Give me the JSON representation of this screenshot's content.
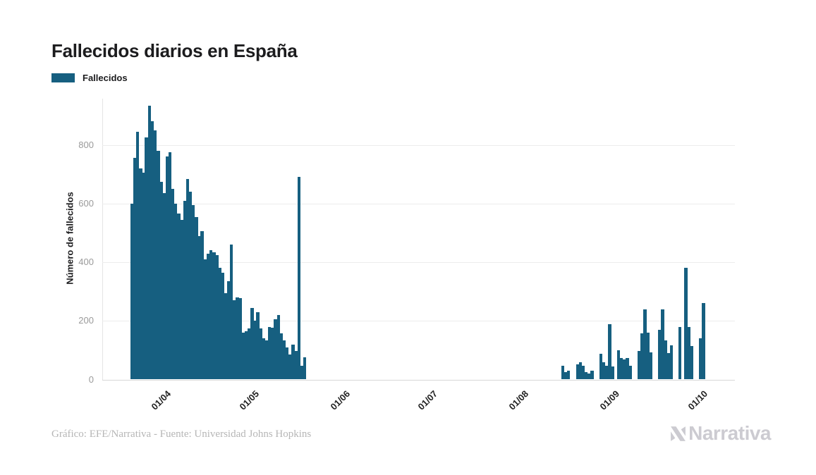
{
  "title": "Fallecidos diarios en España",
  "legend": {
    "label": "Fallecidos",
    "color": "#165f80"
  },
  "footer": {
    "credit": "Gráfico: EFE/Narrativa - Fuente: Universidad Johns Hopkins"
  },
  "logo": {
    "text": "Narrativa"
  },
  "chart_data": {
    "type": "bar",
    "title": "Fallecidos diarios en España",
    "series_name": "Fallecidos",
    "xlabel": "",
    "ylabel": "Número de fallecidos",
    "ylim": [
      0,
      960
    ],
    "yticks": [
      0,
      200,
      400,
      600,
      800
    ],
    "grid": true,
    "legend_position": "top-left",
    "bar_color": "#165f80",
    "xticks": [
      {
        "label": "01/04",
        "index": 6
      },
      {
        "label": "01/05",
        "index": 36
      },
      {
        "label": "01/06",
        "index": 67
      },
      {
        "label": "01/07",
        "index": 97
      },
      {
        "label": "01/08",
        "index": 128
      },
      {
        "label": "01/09",
        "index": 159
      },
      {
        "label": "01/10",
        "index": 189
      }
    ],
    "values": [
      600,
      755,
      845,
      720,
      705,
      825,
      935,
      880,
      850,
      780,
      675,
      635,
      760,
      775,
      650,
      600,
      565,
      545,
      610,
      685,
      640,
      595,
      555,
      490,
      505,
      410,
      430,
      440,
      435,
      425,
      380,
      365,
      295,
      335,
      460,
      270,
      280,
      278,
      160,
      165,
      175,
      245,
      200,
      230,
      175,
      140,
      133,
      180,
      177,
      205,
      220,
      157,
      133,
      110,
      85,
      120,
      97,
      690,
      46,
      76,
      0,
      0,
      0,
      0,
      0,
      0,
      0,
      0,
      0,
      0,
      0,
      0,
      0,
      0,
      0,
      0,
      0,
      0,
      0,
      0,
      0,
      0,
      0,
      0,
      0,
      0,
      0,
      0,
      0,
      0,
      0,
      0,
      0,
      0,
      0,
      0,
      0,
      0,
      0,
      0,
      0,
      0,
      0,
      0,
      0,
      0,
      0,
      0,
      0,
      0,
      0,
      0,
      0,
      0,
      0,
      0,
      0,
      0,
      0,
      0,
      0,
      0,
      0,
      0,
      0,
      0,
      0,
      0,
      0,
      0,
      0,
      0,
      0,
      0,
      0,
      0,
      0,
      0,
      0,
      0,
      0,
      0,
      0,
      0,
      0,
      0,
      0,
      48,
      25,
      30,
      0,
      0,
      52,
      58,
      48,
      26,
      20,
      30,
      0,
      0,
      88,
      60,
      48,
      189,
      44,
      0,
      100,
      74,
      68,
      73,
      47,
      0,
      0,
      97,
      157,
      240,
      160,
      93,
      0,
      0,
      170,
      240,
      133,
      90,
      117,
      0,
      0,
      180,
      0,
      380,
      180,
      114,
      0,
      0,
      141,
      262
    ]
  }
}
